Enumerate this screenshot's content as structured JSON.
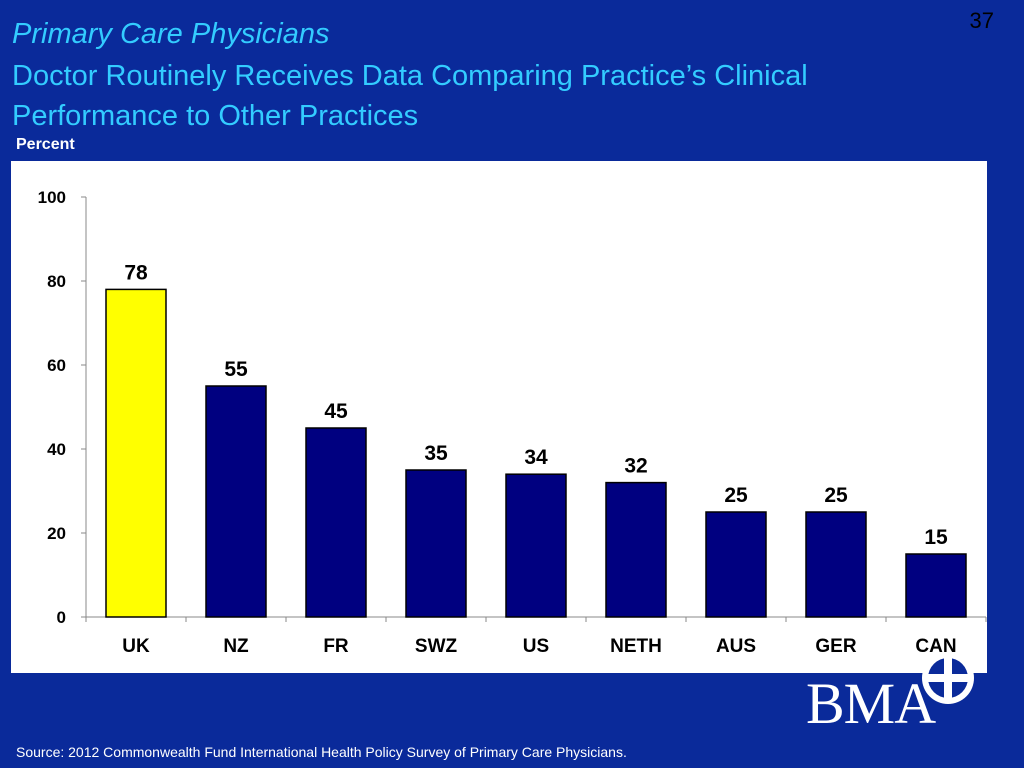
{
  "slide": {
    "number": "37",
    "title_line1": "Primary Care Physicians",
    "title_line2": "Doctor Routinely Receives Data Comparing Practice’s Clinical Performance to Other Practices",
    "source": "Source: 2012 Commonwealth Fund International Health Policy Survey of Primary Care Physicians.",
    "logo_text": "BMA"
  },
  "colors": {
    "background": "#0a2a9a",
    "title": "#33ccff",
    "bar_default": "#000080",
    "bar_highlight": "#ffff00",
    "panel": "#ffffff"
  },
  "chart_data": {
    "type": "bar",
    "ylabel": "Percent",
    "categories": [
      "UK",
      "NZ",
      "FR",
      "SWZ",
      "US",
      "NETH",
      "AUS",
      "GER",
      "CAN"
    ],
    "values": [
      78,
      55,
      45,
      35,
      34,
      32,
      25,
      25,
      15
    ],
    "highlight_index": 0,
    "ylim": [
      0,
      100
    ],
    "yticks": [
      "0",
      "20",
      "40",
      "60",
      "80",
      "100"
    ],
    "grid": false,
    "legend": "none"
  }
}
